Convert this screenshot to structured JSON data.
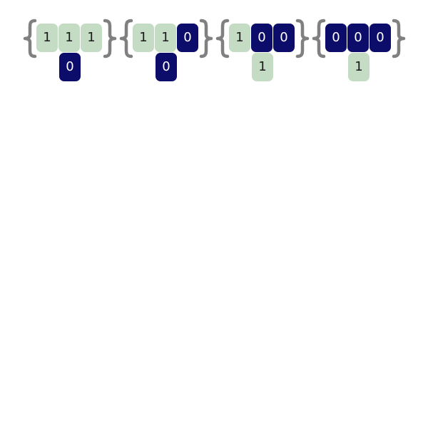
{
  "colors": {
    "one_cell": "#c3dcc3",
    "zero_cell": "#0c0c6a",
    "brace": "#808080"
  },
  "groups": [
    {
      "cells": [
        "1",
        "1",
        "1"
      ],
      "below": "0"
    },
    {
      "cells": [
        "1",
        "1",
        "0"
      ],
      "below": "0"
    },
    {
      "cells": [
        "1",
        "0",
        "0"
      ],
      "below": "1"
    },
    {
      "cells": [
        "0",
        "0",
        "0"
      ],
      "below": "1"
    }
  ]
}
